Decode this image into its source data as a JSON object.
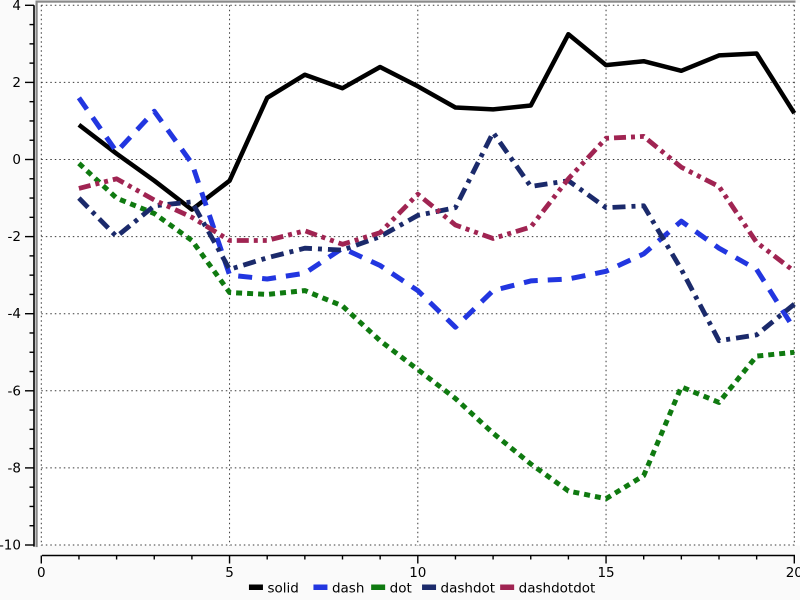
{
  "chart_data": {
    "type": "line",
    "title": "",
    "xlabel": "",
    "ylabel": "",
    "xlim": [
      0,
      20
    ],
    "ylim": [
      -10,
      4
    ],
    "x_ticks": [
      0,
      5,
      10,
      15,
      20
    ],
    "y_ticks": [
      4,
      2,
      0,
      -2,
      -4,
      -6,
      -8,
      -10
    ],
    "x_minor_step": 1,
    "y_minor_step": 0.5,
    "grid": "dotted",
    "legend_position": "bottom-center",
    "x": [
      1,
      2,
      3,
      4,
      5,
      6,
      7,
      8,
      9,
      10,
      11,
      12,
      13,
      14,
      15,
      16,
      17,
      18,
      19,
      20
    ],
    "series": [
      {
        "name": "solid",
        "line_style": "solid",
        "color": "#000000",
        "width": 4.5,
        "dash": "",
        "values": [
          0.9,
          0.15,
          -0.55,
          -1.3,
          -0.55,
          1.6,
          2.2,
          1.85,
          2.4,
          1.9,
          1.35,
          1.3,
          1.4,
          3.25,
          2.45,
          2.55,
          2.3,
          2.7,
          2.75,
          1.2
        ]
      },
      {
        "name": "dash",
        "line_style": "dash",
        "color": "#2236E0",
        "width": 5,
        "dash": "14 10",
        "values": [
          1.6,
          0.2,
          1.25,
          -0.1,
          -3.0,
          -3.1,
          -2.95,
          -2.3,
          -2.75,
          -3.4,
          -4.35,
          -3.4,
          -3.15,
          -3.1,
          -2.9,
          -2.45,
          -1.6,
          -2.3,
          -2.85,
          -4.4
        ]
      },
      {
        "name": "dot",
        "line_style": "dot",
        "color": "#0F7A10",
        "width": 5,
        "dash": "6 5",
        "values": [
          -0.1,
          -1.0,
          -1.4,
          -2.1,
          -3.45,
          -3.5,
          -3.4,
          -3.8,
          -4.7,
          -5.45,
          -6.2,
          -7.1,
          -7.9,
          -8.6,
          -8.8,
          -8.2,
          -5.9,
          -6.3,
          -5.1,
          -5.0
        ]
      },
      {
        "name": "dashdot",
        "line_style": "dashdot",
        "color": "#1B2A6B",
        "width": 4.8,
        "dash": "13 6 4 6",
        "values": [
          -1.0,
          -2.0,
          -1.2,
          -1.1,
          -2.85,
          -2.55,
          -2.3,
          -2.35,
          -2.0,
          -1.45,
          -1.25,
          0.7,
          -0.7,
          -0.55,
          -1.25,
          -1.2,
          -2.85,
          -4.7,
          -4.55,
          -3.75
        ]
      },
      {
        "name": "dashdotdot",
        "line_style": "dashdotdot",
        "color": "#A02452",
        "width": 4.8,
        "dash": "12 5 4 5 4 5",
        "values": [
          -0.75,
          -0.5,
          -1.05,
          -1.5,
          -2.1,
          -2.1,
          -1.85,
          -2.2,
          -1.9,
          -0.9,
          -1.7,
          -2.05,
          -1.75,
          -0.5,
          0.55,
          0.6,
          -0.2,
          -0.7,
          -2.15,
          -2.9
        ]
      }
    ],
    "legend_labels": [
      "solid",
      "dash",
      "dot",
      "dashdot",
      "dashdotdot"
    ]
  },
  "style": {
    "grid_color": "#3a3a3a",
    "axis_color": "#000000",
    "frame_color": "#8a8a8a",
    "plot_bg": "#ffffff",
    "page_bg": "#fafafa",
    "tick_font_size": 13.5,
    "legend_font_size": 13.5
  }
}
